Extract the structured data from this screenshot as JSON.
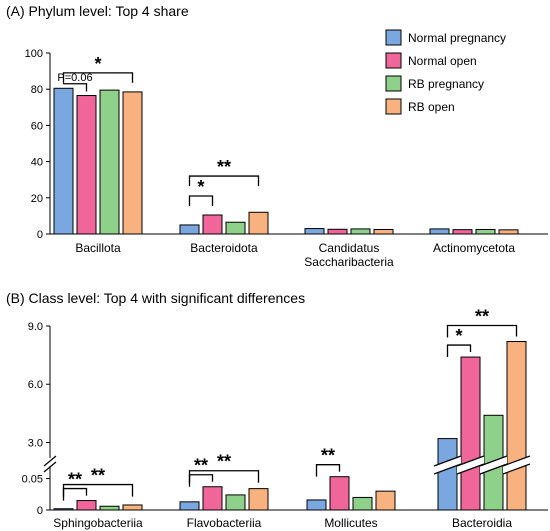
{
  "chart_data": [
    {
      "type": "bar",
      "title": "(A) Phylum level: Top 4 share",
      "categories": [
        "Bacillota",
        "Bacteroidota",
        "Candidatus\nSaccharibacteria",
        "Actinomycetota"
      ],
      "ylim": [
        0,
        100
      ],
      "yticks": [
        "0",
        "20",
        "40",
        "60",
        "80",
        "100"
      ],
      "series": [
        {
          "name": "Normal pregnancy",
          "color": "#7ba7e0",
          "values": [
            80.5,
            5.0,
            3.0,
            2.8
          ]
        },
        {
          "name": "Normal open",
          "color": "#f0669a",
          "values": [
            76.5,
            10.5,
            2.6,
            2.4
          ]
        },
        {
          "name": "RB pregnancy",
          "color": "#8fd18a",
          "values": [
            79.5,
            6.5,
            2.8,
            2.5
          ]
        },
        {
          "name": "RB open",
          "color": "#f7b27f",
          "values": [
            78.5,
            12.0,
            2.5,
            2.3
          ]
        }
      ],
      "annotations": [
        {
          "category": 0,
          "from": 0,
          "to": 3,
          "y": 89,
          "label": "*"
        },
        {
          "category": 0,
          "from": 0,
          "to": 1,
          "y": 83,
          "label": "P=0.06"
        },
        {
          "category": 1,
          "from": 0,
          "to": 1,
          "y": 21,
          "label": "*"
        },
        {
          "category": 1,
          "from": 0,
          "to": 3,
          "y": 32,
          "label": "**"
        }
      ],
      "legend": "top-right"
    },
    {
      "type": "bar",
      "title": "(B) Class level: Top 4 with significant differences",
      "categories": [
        "Sphingobacteriia",
        "Flavobacteriia",
        "Mollicutes",
        "Bacteroidia"
      ],
      "broken_axis": {
        "lower": {
          "range": [
            0,
            0.07
          ],
          "ticks": [
            "0",
            "0.05"
          ]
        },
        "upper": {
          "range": [
            2.2,
            9.0
          ],
          "ticks": [
            "3.0",
            "6.0",
            "9.0"
          ]
        }
      },
      "series": [
        {
          "name": "Normal pregnancy",
          "color": "#7ba7e0",
          "values": [
            0.002,
            0.013,
            0.016,
            3.2
          ]
        },
        {
          "name": "Normal open",
          "color": "#f0669a",
          "values": [
            0.015,
            0.037,
            0.053,
            7.4
          ]
        },
        {
          "name": "RB pregnancy",
          "color": "#8fd18a",
          "values": [
            0.006,
            0.024,
            0.02,
            4.4
          ]
        },
        {
          "name": "RB open",
          "color": "#f7b27f",
          "values": [
            0.008,
            0.034,
            0.03,
            8.2
          ]
        }
      ],
      "annotations": [
        {
          "category": 0,
          "from": 0,
          "to": 1,
          "label": "**"
        },
        {
          "category": 0,
          "from": 0,
          "to": 3,
          "label": "**"
        },
        {
          "category": 1,
          "from": 0,
          "to": 1,
          "label": "**"
        },
        {
          "category": 1,
          "from": 0,
          "to": 3,
          "label": "**"
        },
        {
          "category": 2,
          "from": 0,
          "to": 1,
          "label": "**"
        },
        {
          "category": 3,
          "from": 0,
          "to": 1,
          "label": "*"
        },
        {
          "category": 3,
          "from": 0,
          "to": 3,
          "label": "**"
        }
      ]
    }
  ]
}
